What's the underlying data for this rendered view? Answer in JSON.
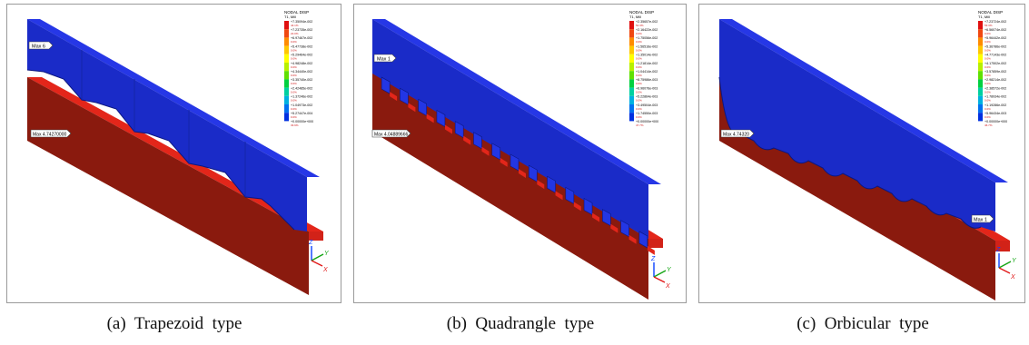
{
  "figure": {
    "panels": [
      {
        "caption": "(a)  Trapezoid  type",
        "legend_title": "NODAL DISP",
        "legend_subtitle": "T1, Mill",
        "top_label": "Max 6",
        "mid_label": "Max 4.74270000",
        "legend_values": [
          "+7.35094e-002",
          "+7.23735e-002",
          "+6.97467e-002",
          "+5.47738e-002",
          "+5.29464e-002",
          "+4.98248e-002",
          "+4.34440e-002",
          "+3.35740e-002",
          "+2.42485e-002",
          "+1.37246e-002",
          "+1.04973e-002",
          "+5.27447e-004",
          "+0.00000e+000"
        ],
        "legend_pcts": [
          "44.1%",
          "22.0%",
          "0.0%",
          "0.0%",
          "0.0%",
          "0.0%",
          "0.0%",
          "0.0%",
          "0.0%",
          "0.0%",
          "0.0%",
          "0.0%",
          "33.9%"
        ],
        "axes": {
          "z": "Z",
          "y": "Y",
          "x": "X"
        }
      },
      {
        "caption": "(b)  Quadrangle  type",
        "legend_title": "NODAL DISP",
        "legend_subtitle": "T1, Mill",
        "top_label": "Max 1",
        "mid_label": "Max 4.04889666",
        "legend_values": [
          "+2.35657e-002",
          "+2.16422e-002",
          "+1.75056e-002",
          "+1.56516e-002",
          "+1.35014e-002",
          "+1.21814e-002",
          "+1.04414e-002",
          "+8.75986e-003",
          "+6.96076e-003",
          "+5.22864e-003",
          "+3.49504e-003",
          "+1.74550e-003",
          "+0.00000e+000"
        ],
        "legend_pcts": [
          "52.3%",
          "0.0%",
          "0.0%",
          "0.0%",
          "0.0%",
          "0.0%",
          "0.0%",
          "0.0%",
          "0.0%",
          "0.0%",
          "0.0%",
          "0.0%",
          "47.7%"
        ],
        "axes": {
          "z": "Z",
          "y": "Y",
          "x": "X"
        }
      },
      {
        "caption": "(c)  Orbicular  type",
        "legend_title": "NODAL DISP",
        "legend_subtitle": "T1, Mill",
        "top_label": "Max 1",
        "mid_label": "Max 4.74320",
        "legend_values": [
          "+7.23724e-002",
          "+6.56074e-002",
          "+5.96442e-002",
          "+5.36786e-002",
          "+4.77143e-002",
          "+4.17502e-002",
          "+3.57859e-002",
          "+2.98214e-002",
          "+2.38572e-002",
          "+1.78934e-002",
          "+1.19286e-002",
          "+5.96434e-003",
          "+0.00000e+000"
        ],
        "legend_pcts": [
          "53.3%",
          "0.0%",
          "0.0%",
          "0.0%",
          "0.0%",
          "0.0%",
          "0.0%",
          "0.0%",
          "0.0%",
          "0.0%",
          "0.0%",
          "0.0%",
          "46.7%"
        ],
        "axes": {
          "z": "Z",
          "y": "Y",
          "x": "X"
        }
      }
    ],
    "colors": {
      "blue_top": "#1d2fd6",
      "blue_side": "#1a28b4",
      "red_face": "#8a1a0e",
      "red_top": "#e3261a",
      "legend_scale": [
        "#e01010",
        "#f04810",
        "#ff8c00",
        "#ffc800",
        "#ffff00",
        "#b8f000",
        "#60e000",
        "#00d040",
        "#00d0a0",
        "#00b0e0",
        "#0070f0",
        "#0030e0",
        "#0000c0"
      ]
    }
  }
}
